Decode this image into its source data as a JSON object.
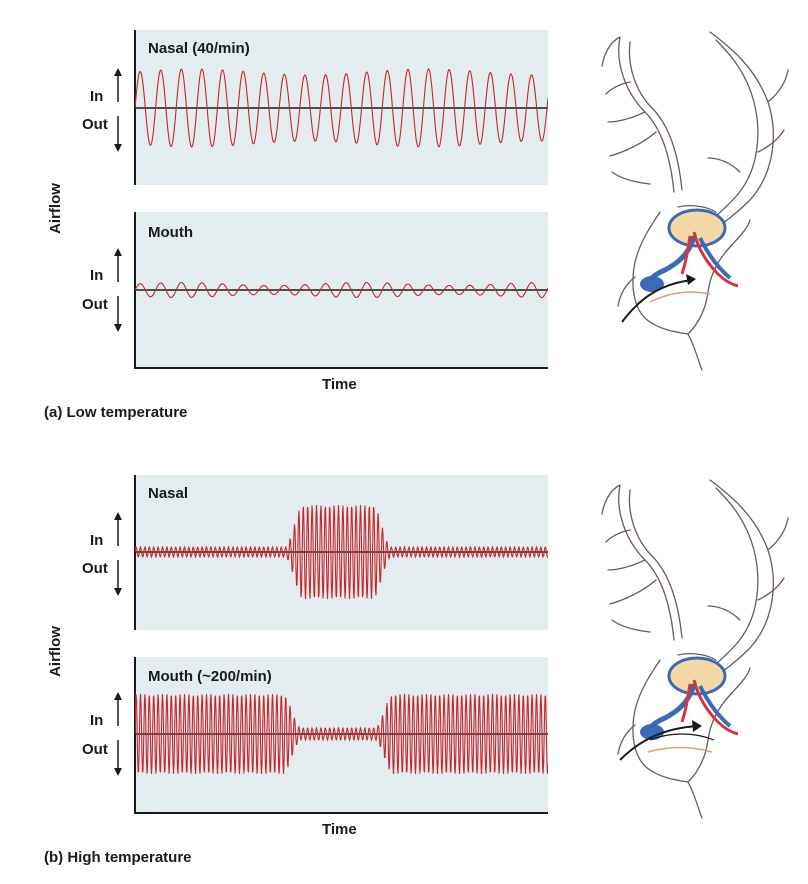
{
  "panel_a": {
    "caption_tag": "(a)",
    "caption_text": "Low temperature",
    "y_label": "Airflow",
    "x_label": "Time",
    "nasal": {
      "title": "Nasal (40/min)",
      "in": "In",
      "out": "Out"
    },
    "mouth": {
      "title": "Mouth",
      "in": "In",
      "out": "Out"
    }
  },
  "panel_b": {
    "caption_tag": "(b)",
    "caption_text": "High temperature",
    "y_label": "Airflow",
    "x_label": "Time",
    "nasal": {
      "title": "Nasal",
      "in": "In",
      "out": "Out"
    },
    "mouth": {
      "title": "Mouth (~200/min)",
      "in": "In",
      "out": "Out"
    }
  },
  "colors": {
    "panel_bg": "#e3ecef",
    "wave": "#c4282c",
    "baseline": "#1a1a1a",
    "artery": "#d9343c",
    "vein": "#3b6bb5",
    "brain": "#f3d9a8"
  },
  "icons": [
    "reindeer-head-illustration-a",
    "reindeer-head-illustration-b"
  ]
}
